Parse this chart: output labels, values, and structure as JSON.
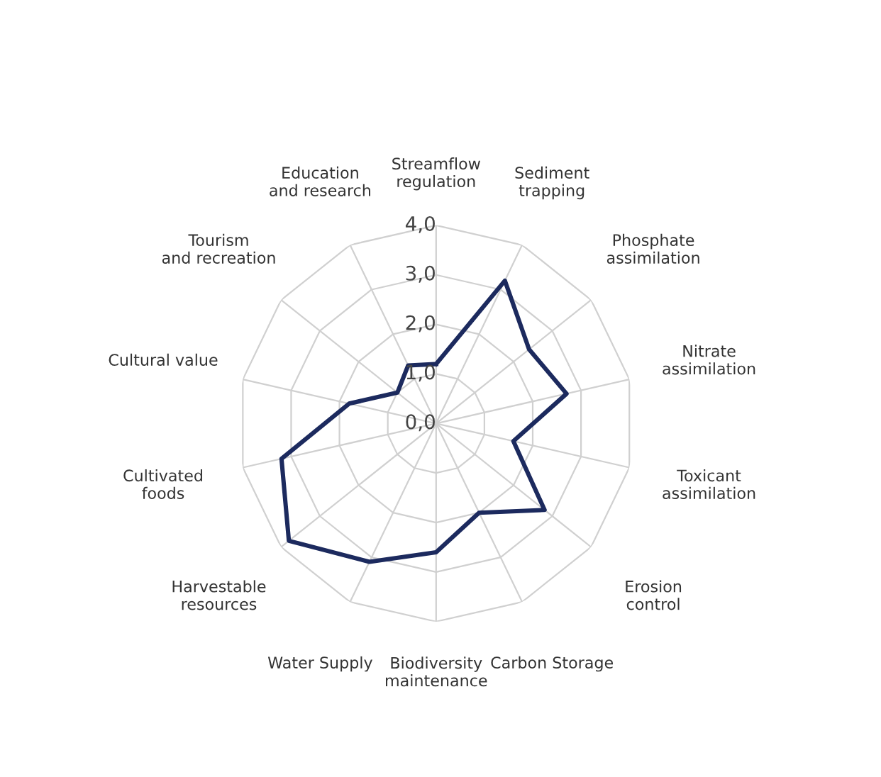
{
  "chart_data": {
    "type": "radar",
    "categories": [
      "Streamflow regulation",
      "Sediment trapping",
      "Phosphate assimilation",
      "Nitrate assimilation",
      "Toxicant assimilation",
      "Erosion control",
      "Carbon Storage",
      "Biodiversity maintenance",
      "Water Supply",
      "Harvestable resources",
      "Cultivated foods",
      "Cultural value",
      "Tourism and recreation",
      "Education and research"
    ],
    "series": [
      {
        "color": "#1c2a5e",
        "values": [
          1.2,
          3.2,
          2.4,
          2.7,
          1.6,
          2.8,
          2.0,
          2.6,
          3.1,
          3.8,
          3.2,
          1.8,
          1.0,
          1.3
        ]
      }
    ],
    "ylim": [
      0,
      4
    ],
    "yticks": [
      {
        "value": 0,
        "label": "0,0"
      },
      {
        "value": 1,
        "label": "1,0"
      },
      {
        "value": 2,
        "label": "2,0"
      },
      {
        "value": 3,
        "label": "3,0"
      },
      {
        "value": 4,
        "label": "4,0"
      }
    ],
    "grid": true,
    "marker": "none",
    "line_style": "solid"
  }
}
